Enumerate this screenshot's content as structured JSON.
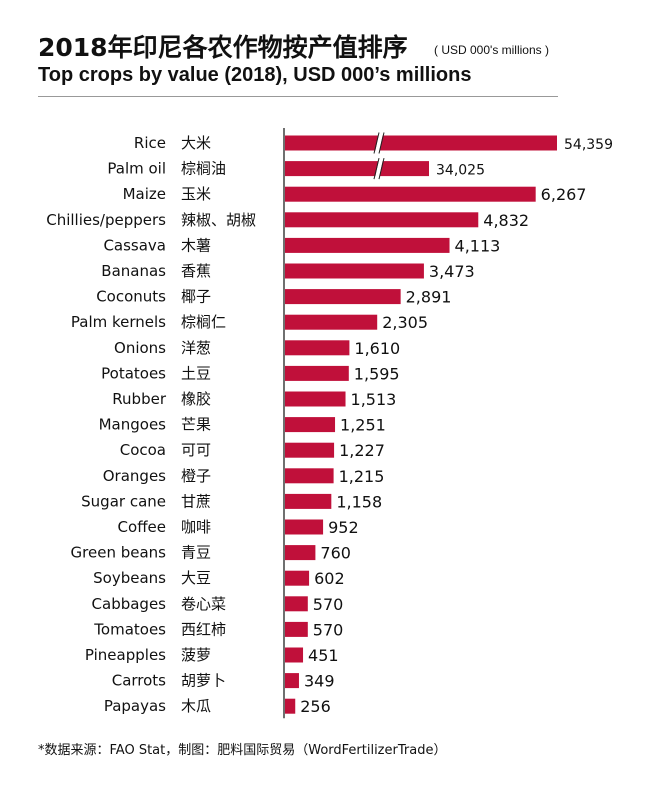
{
  "header": {
    "title_cn": "2018年印尼各农作物按产值排序",
    "title_unit": "( USD 000's millions )",
    "title_en": "Top crops by value (2018), USD 000’s millions"
  },
  "footer": {
    "source": "*数据来源：FAO Stat，制图：肥料国际贸易（WordFertilizerTrade）"
  },
  "colors": {
    "bar": "#c0103a",
    "axis": "#222222",
    "text": "#111111"
  },
  "chart_data": {
    "type": "bar",
    "orientation": "horizontal",
    "title": "Top crops by value (2018), USD 000’s millions",
    "axis_break": true,
    "categories": [
      "Rice",
      "Palm oil",
      "Maize",
      "Chillies/peppers",
      "Cassava",
      "Bananas",
      "Coconuts",
      "Palm kernels",
      "Onions",
      "Potatoes",
      "Rubber",
      "Mangoes",
      "Cocoa",
      "Oranges",
      "Sugar cane",
      "Coffee",
      "Green beans",
      "Soybeans",
      "Cabbages",
      "Tomatoes",
      "Pineapples",
      "Carrots",
      "Papayas"
    ],
    "categories_cn": [
      "大米",
      "棕榈油",
      "玉米",
      "辣椒、胡椒",
      "木薯",
      "香蕉",
      "椰子",
      "棕榈仁",
      "洋葱",
      "土豆",
      "橡胶",
      "芒果",
      "可可",
      "橙子",
      "甘蔗",
      "咖啡",
      "青豆",
      "大豆",
      "卷心菜",
      "西红柿",
      "菠萝",
      "胡萝卜",
      "木瓜"
    ],
    "values": [
      54359,
      34025,
      6267,
      4832,
      4113,
      3473,
      2891,
      2305,
      1610,
      1595,
      1513,
      1251,
      1227,
      1215,
      1158,
      952,
      760,
      602,
      570,
      570,
      451,
      349,
      256
    ],
    "value_labels": [
      "54,359",
      "34,025",
      "6,267",
      "4,832",
      "4,113",
      "3,473",
      "2,891",
      "2,305",
      "1,610",
      "1,595",
      "1,513",
      "1,251",
      "1,227",
      "1,215",
      "1,158",
      "952",
      "760",
      "602",
      "570",
      "570",
      "451",
      "349",
      "256"
    ]
  }
}
